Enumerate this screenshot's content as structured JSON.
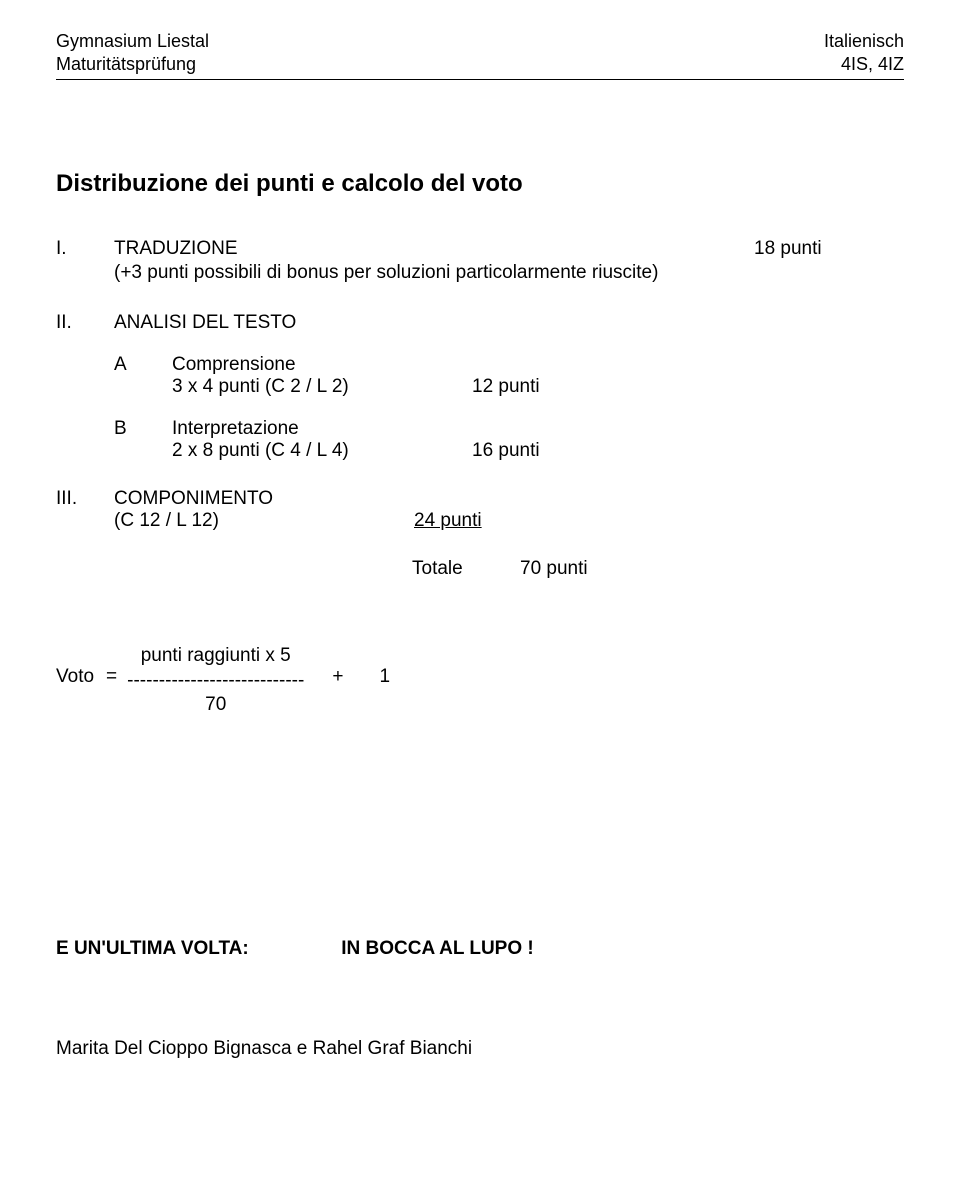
{
  "header": {
    "left1": "Gymnasium Liestal",
    "left2": "Maturitätsprüfung",
    "right1": "Italienisch",
    "right2": "4IS, 4IZ"
  },
  "title": "Distribuzione dei punti e calcolo del voto",
  "sec1": {
    "roman": "I.",
    "label": "TRADUZIONE",
    "points": "18 punti",
    "note": "(+3 punti possibili di bonus per soluzioni particolarmente riuscite)"
  },
  "sec2": {
    "roman": "II.",
    "label": "ANALISI DEL TESTO",
    "subA": {
      "letter": "A",
      "title": "Comprensione",
      "formula": "3 x 4 punti   (C 2 / L 2)",
      "points": "12 punti"
    },
    "subB": {
      "letter": "B",
      "title": "Interpretazione",
      "formula": "2 x 8 punti   (C 4 / L 4)",
      "points": "16 punti"
    }
  },
  "sec3": {
    "roman": "III.",
    "label": "COMPONIMENTO",
    "paren": "(C 12 / L 12)",
    "points": "24 punti"
  },
  "total": {
    "label": "Totale",
    "value": "70 punti"
  },
  "voto": {
    "lhs": "Voto",
    "eq": "=",
    "numerator": "punti raggiunti x 5",
    "dashes": "----------------------------",
    "denominator": "70",
    "plus": "+",
    "one": "1"
  },
  "closing": {
    "label": "E UN'ULTIMA VOLTA:",
    "wish": "IN  BOCCA  AL  LUPO !"
  },
  "authors": "Marita Del Cioppo Bignasca e Rahel Graf Bianchi"
}
